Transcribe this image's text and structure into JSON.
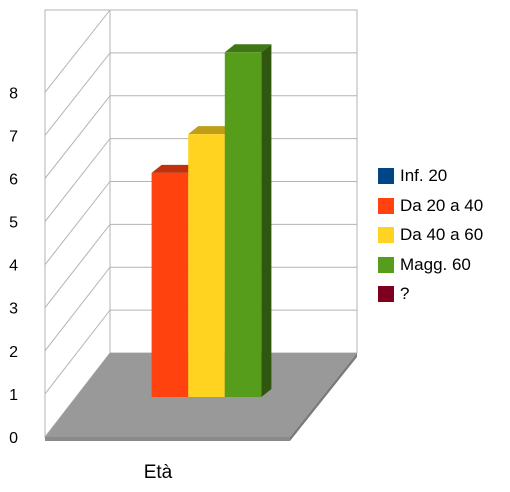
{
  "chart_data": {
    "type": "bar",
    "style": "3d-column",
    "category": "Età",
    "series": [
      {
        "name": "Inf. 20",
        "value": 0,
        "color": "#004586"
      },
      {
        "name": "Da 20 a 40",
        "value": 5.2,
        "color": "#ff420e"
      },
      {
        "name": "Da 40 a 60",
        "value": 6.1,
        "color": "#ffd320"
      },
      {
        "name": "Magg. 60",
        "value": 8,
        "color": "#579d1c"
      },
      {
        "name": "?",
        "value": 0,
        "color": "#7e0021"
      }
    ],
    "ylim": [
      0,
      8
    ],
    "yticks": [
      "0",
      "1",
      "2",
      "3",
      "4",
      "5",
      "6",
      "7",
      "8"
    ],
    "grid": true,
    "legend_position": "right",
    "floor_color": "#999999"
  }
}
